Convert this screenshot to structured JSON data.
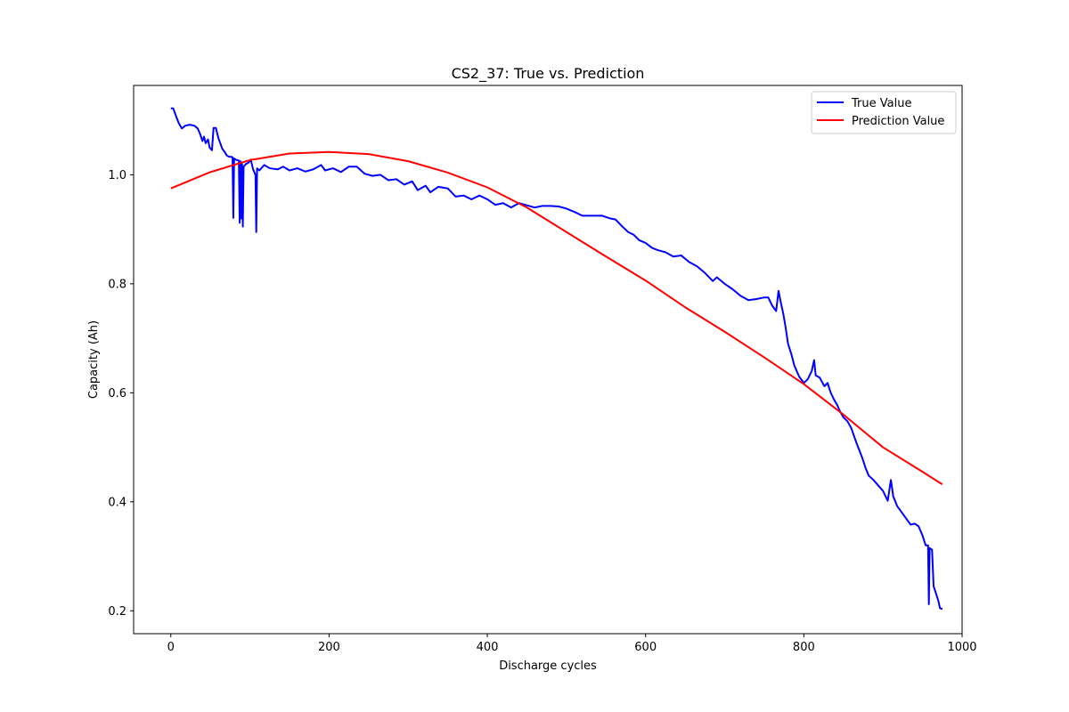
{
  "chart_data": {
    "type": "line",
    "title": "CS2_37: True vs. Prediction",
    "xlabel": "Discharge cycles",
    "ylabel": "Capacity (Ah)",
    "xlim": [
      -47,
      1000
    ],
    "ylim": [
      0.158,
      1.164
    ],
    "x_ticks": [
      0,
      200,
      400,
      600,
      800,
      1000
    ],
    "y_ticks": [
      0.2,
      0.4,
      0.6,
      0.8,
      1.0
    ],
    "grid": false,
    "legend_position": "top-right",
    "series": [
      {
        "name": "True Value",
        "color": "#0000ff",
        "points": [
          [
            0,
            1.122
          ],
          [
            3,
            1.122
          ],
          [
            6,
            1.11
          ],
          [
            10,
            1.095
          ],
          [
            14,
            1.085
          ],
          [
            18,
            1.09
          ],
          [
            24,
            1.092
          ],
          [
            30,
            1.09
          ],
          [
            34,
            1.085
          ],
          [
            37,
            1.075
          ],
          [
            40,
            1.062
          ],
          [
            42,
            1.07
          ],
          [
            44,
            1.058
          ],
          [
            47,
            1.065
          ],
          [
            49,
            1.05
          ],
          [
            52,
            1.045
          ],
          [
            54,
            1.086
          ],
          [
            57,
            1.086
          ],
          [
            60,
            1.068
          ],
          [
            62,
            1.06
          ],
          [
            65,
            1.048
          ],
          [
            68,
            1.042
          ],
          [
            71,
            1.035
          ],
          [
            74,
            1.033
          ],
          [
            77,
            1.033
          ],
          [
            78,
            1.032
          ],
          [
            79,
            0.921
          ],
          [
            80,
            1.03
          ],
          [
            82,
            1.028
          ],
          [
            86,
            1.026
          ],
          [
            87,
            0.912
          ],
          [
            88,
            1.025
          ],
          [
            89,
            0.92
          ],
          [
            90,
            1.02
          ],
          [
            91,
            0.905
          ],
          [
            92,
            1.015
          ],
          [
            95,
            1.02
          ],
          [
            98,
            1.022
          ],
          [
            101,
            1.028
          ],
          [
            104,
            1.01
          ],
          [
            107,
            1.0
          ],
          [
            108,
            0.895
          ],
          [
            109,
            1.012
          ],
          [
            112,
            1.008
          ],
          [
            118,
            1.018
          ],
          [
            125,
            1.012
          ],
          [
            135,
            1.01
          ],
          [
            142,
            1.015
          ],
          [
            150,
            1.008
          ],
          [
            160,
            1.012
          ],
          [
            170,
            1.006
          ],
          [
            180,
            1.01
          ],
          [
            190,
            1.018
          ],
          [
            195,
            1.008
          ],
          [
            205,
            1.012
          ],
          [
            215,
            1.005
          ],
          [
            225,
            1.015
          ],
          [
            235,
            1.015
          ],
          [
            245,
            1.002
          ],
          [
            255,
            0.998
          ],
          [
            265,
            1.0
          ],
          [
            275,
            0.99
          ],
          [
            285,
            0.992
          ],
          [
            295,
            0.982
          ],
          [
            305,
            0.988
          ],
          [
            312,
            0.972
          ],
          [
            322,
            0.98
          ],
          [
            328,
            0.968
          ],
          [
            338,
            0.978
          ],
          [
            350,
            0.975
          ],
          [
            360,
            0.96
          ],
          [
            370,
            0.962
          ],
          [
            380,
            0.955
          ],
          [
            390,
            0.962
          ],
          [
            400,
            0.955
          ],
          [
            410,
            0.945
          ],
          [
            420,
            0.948
          ],
          [
            430,
            0.94
          ],
          [
            440,
            0.948
          ],
          [
            450,
            0.944
          ],
          [
            460,
            0.94
          ],
          [
            470,
            0.943
          ],
          [
            480,
            0.943
          ],
          [
            490,
            0.942
          ],
          [
            500,
            0.938
          ],
          [
            510,
            0.932
          ],
          [
            520,
            0.925
          ],
          [
            535,
            0.925
          ],
          [
            545,
            0.925
          ],
          [
            555,
            0.92
          ],
          [
            562,
            0.918
          ],
          [
            570,
            0.906
          ],
          [
            578,
            0.895
          ],
          [
            585,
            0.89
          ],
          [
            592,
            0.88
          ],
          [
            600,
            0.875
          ],
          [
            608,
            0.866
          ],
          [
            615,
            0.862
          ],
          [
            625,
            0.858
          ],
          [
            635,
            0.85
          ],
          [
            645,
            0.852
          ],
          [
            655,
            0.84
          ],
          [
            665,
            0.832
          ],
          [
            675,
            0.82
          ],
          [
            685,
            0.805
          ],
          [
            690,
            0.812
          ],
          [
            700,
            0.8
          ],
          [
            710,
            0.79
          ],
          [
            720,
            0.778
          ],
          [
            730,
            0.77
          ],
          [
            740,
            0.772
          ],
          [
            750,
            0.775
          ],
          [
            755,
            0.775
          ],
          [
            760,
            0.76
          ],
          [
            765,
            0.75
          ],
          [
            768,
            0.787
          ],
          [
            771,
            0.765
          ],
          [
            774,
            0.745
          ],
          [
            777,
            0.72
          ],
          [
            780,
            0.69
          ],
          [
            784,
            0.672
          ],
          [
            788,
            0.65
          ],
          [
            794,
            0.63
          ],
          [
            800,
            0.618
          ],
          [
            805,
            0.625
          ],
          [
            810,
            0.64
          ],
          [
            813,
            0.66
          ],
          [
            815,
            0.632
          ],
          [
            820,
            0.628
          ],
          [
            826,
            0.612
          ],
          [
            830,
            0.618
          ],
          [
            834,
            0.6
          ],
          [
            838,
            0.588
          ],
          [
            842,
            0.578
          ],
          [
            846,
            0.565
          ],
          [
            850,
            0.555
          ],
          [
            855,
            0.548
          ],
          [
            860,
            0.535
          ],
          [
            866,
            0.51
          ],
          [
            870,
            0.495
          ],
          [
            874,
            0.48
          ],
          [
            878,
            0.462
          ],
          [
            882,
            0.448
          ],
          [
            888,
            0.44
          ],
          [
            894,
            0.43
          ],
          [
            900,
            0.42
          ],
          [
            906,
            0.402
          ],
          [
            910,
            0.44
          ],
          [
            913,
            0.41
          ],
          [
            918,
            0.392
          ],
          [
            924,
            0.38
          ],
          [
            930,
            0.368
          ],
          [
            935,
            0.358
          ],
          [
            940,
            0.36
          ],
          [
            945,
            0.355
          ],
          [
            950,
            0.338
          ],
          [
            954,
            0.32
          ],
          [
            957,
            0.32
          ],
          [
            958,
            0.212
          ],
          [
            959,
            0.315
          ],
          [
            962,
            0.312
          ],
          [
            964,
            0.245
          ],
          [
            967,
            0.232
          ],
          [
            970,
            0.218
          ],
          [
            972,
            0.205
          ],
          [
            975,
            0.203
          ]
        ]
      },
      {
        "name": "Prediction Value",
        "color": "#ff0000",
        "points": [
          [
            0,
            0.975
          ],
          [
            50,
            1.005
          ],
          [
            100,
            1.027
          ],
          [
            150,
            1.039
          ],
          [
            200,
            1.042
          ],
          [
            250,
            1.038
          ],
          [
            300,
            1.025
          ],
          [
            350,
            1.004
          ],
          [
            400,
            0.977
          ],
          [
            450,
            0.94
          ],
          [
            500,
            0.895
          ],
          [
            550,
            0.85
          ],
          [
            600,
            0.806
          ],
          [
            650,
            0.757
          ],
          [
            700,
            0.712
          ],
          [
            750,
            0.665
          ],
          [
            800,
            0.616
          ],
          [
            850,
            0.56
          ],
          [
            900,
            0.5
          ],
          [
            950,
            0.455
          ],
          [
            975,
            0.432
          ]
        ]
      }
    ]
  }
}
